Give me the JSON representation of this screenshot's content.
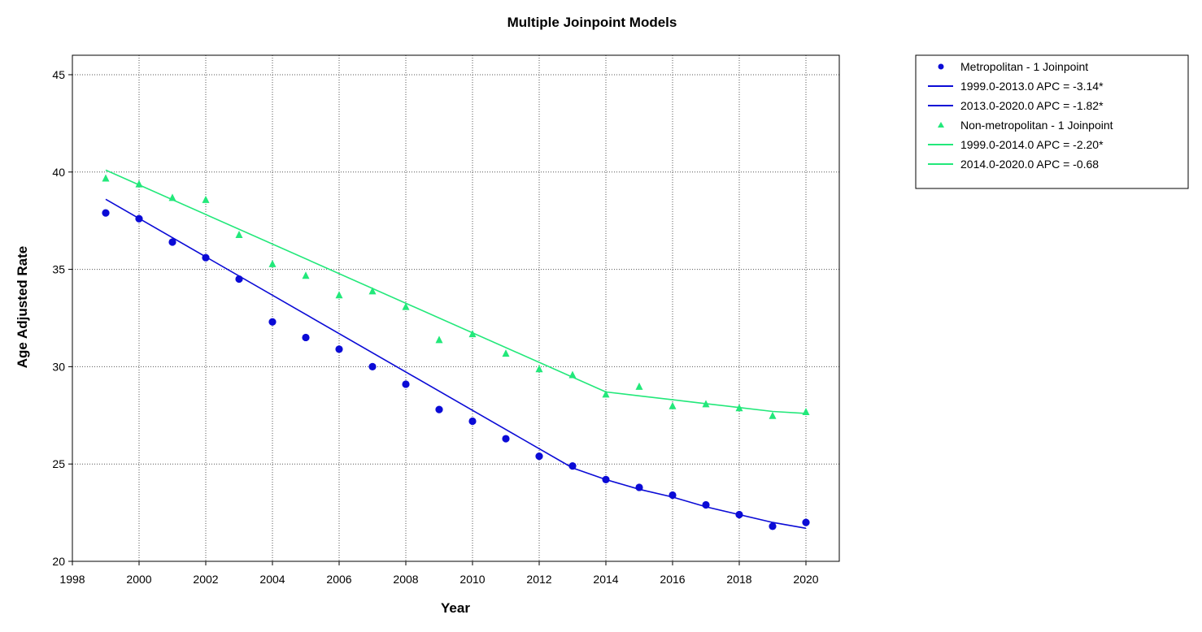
{
  "chart_data": {
    "type": "line",
    "title": "Multiple Joinpoint Models",
    "xlabel": "Year",
    "ylabel": "Age Adjusted Rate",
    "xlim": [
      1998,
      2021
    ],
    "ylim": [
      20,
      46
    ],
    "x_ticks": [
      1998,
      2000,
      2002,
      2004,
      2006,
      2008,
      2010,
      2012,
      2014,
      2016,
      2018,
      2020
    ],
    "y_ticks": [
      20,
      25,
      30,
      35,
      40,
      45
    ],
    "grid": true,
    "legend_position": "right",
    "series": [
      {
        "name": "Metropolitan - 1 Joinpoint",
        "kind": "observed",
        "marker": "circle",
        "color": "#0b0bd6",
        "x": [
          1999,
          2000,
          2001,
          2002,
          2003,
          2004,
          2005,
          2006,
          2007,
          2008,
          2009,
          2010,
          2011,
          2012,
          2013,
          2014,
          2015,
          2016,
          2017,
          2018,
          2019,
          2020
        ],
        "y": [
          37.9,
          37.6,
          36.4,
          35.6,
          34.5,
          32.3,
          31.5,
          30.9,
          30.0,
          29.1,
          27.8,
          27.2,
          26.3,
          25.4,
          24.9,
          24.2,
          23.8,
          23.4,
          22.9,
          22.4,
          21.8,
          22.0
        ]
      },
      {
        "name": "1999.0-2013.0 APC  =  -3.14*",
        "kind": "fit",
        "color": "#0b0bd6",
        "x": [
          1999,
          2013
        ],
        "y": [
          38.6,
          24.8
        ]
      },
      {
        "name": "2013.0-2020.0 APC  =  -1.82*",
        "kind": "fit",
        "color": "#0b0bd6",
        "x": [
          2013,
          2014,
          2015,
          2016,
          2017,
          2018,
          2019,
          2020
        ],
        "y": [
          24.8,
          24.2,
          23.7,
          23.3,
          22.8,
          22.4,
          22.0,
          21.7
        ]
      },
      {
        "name": "Non-metropolitan - 1 Joinpoint",
        "kind": "observed",
        "marker": "triangle",
        "color": "#22e87a",
        "x": [
          1999,
          2000,
          2001,
          2002,
          2003,
          2004,
          2005,
          2006,
          2007,
          2008,
          2009,
          2010,
          2011,
          2012,
          2013,
          2014,
          2015,
          2016,
          2017,
          2018,
          2019,
          2020
        ],
        "y": [
          39.7,
          39.4,
          38.7,
          38.6,
          36.8,
          35.3,
          34.7,
          33.7,
          33.9,
          33.1,
          31.4,
          31.7,
          30.7,
          29.9,
          29.6,
          28.6,
          29.0,
          28.0,
          28.1,
          27.9,
          27.5,
          27.7
        ]
      },
      {
        "name": "1999.0-2014.0 APC  =  -2.20*",
        "kind": "fit",
        "color": "#22e87a",
        "x": [
          1999,
          2014
        ],
        "y": [
          40.1,
          28.7
        ]
      },
      {
        "name": "2014.0-2020.0 APC  =  -0.68",
        "kind": "fit",
        "color": "#22e87a",
        "x": [
          2014,
          2015,
          2016,
          2017,
          2018,
          2019,
          2020
        ],
        "y": [
          28.7,
          28.5,
          28.3,
          28.1,
          27.9,
          27.7,
          27.6
        ]
      }
    ],
    "legend": [
      {
        "label": "Metropolitan - 1 Joinpoint",
        "symbol": "circle",
        "color": "#0b0bd6"
      },
      {
        "label": "1999.0-2013.0 APC  =  -3.14*",
        "symbol": "line",
        "color": "#0b0bd6"
      },
      {
        "label": "2013.0-2020.0 APC  =  -1.82*",
        "symbol": "line",
        "color": "#0b0bd6"
      },
      {
        "label": "Non-metropolitan - 1 Joinpoint",
        "symbol": "triangle",
        "color": "#22e87a"
      },
      {
        "label": "1999.0-2014.0 APC  =  -2.20*",
        "symbol": "line",
        "color": "#22e87a"
      },
      {
        "label": "2014.0-2020.0 APC  =  -0.68",
        "symbol": "line",
        "color": "#22e87a"
      }
    ]
  }
}
